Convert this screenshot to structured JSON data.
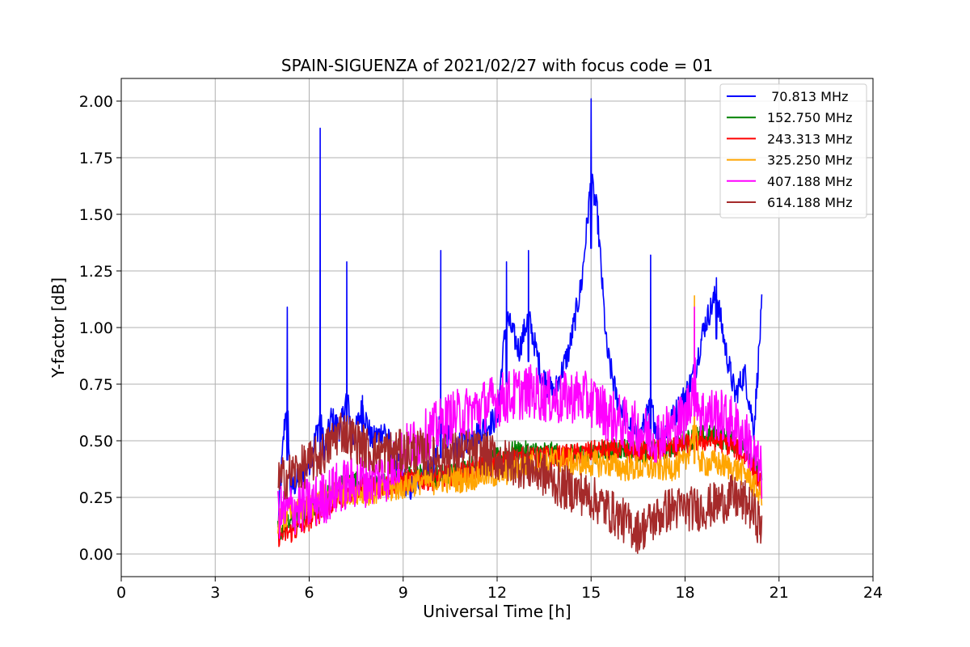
{
  "chart_data": {
    "type": "line",
    "title": "SPAIN-SIGUENZA of 2021/02/27 with focus code = 01",
    "xlabel": "Universal Time [h]",
    "ylabel": "Y-factor [dB]",
    "xlim": [
      0,
      24
    ],
    "ylim": [
      -0.1,
      2.1
    ],
    "xticks": [
      0,
      3,
      6,
      9,
      12,
      15,
      18,
      21,
      24
    ],
    "xtick_labels": [
      "0",
      "3",
      "6",
      "9",
      "12",
      "15",
      "18",
      "21",
      "24"
    ],
    "yticks": [
      0.0,
      0.25,
      0.5,
      0.75,
      1.0,
      1.25,
      1.5,
      1.75,
      2.0
    ],
    "ytick_labels": [
      "0.00",
      "0.25",
      "0.50",
      "0.75",
      "1.00",
      "1.25",
      "1.50",
      "1.75",
      "2.00"
    ],
    "grid": true,
    "legend_position": "top-right",
    "series": [
      {
        "name": " 70.813 MHz",
        "color": "#0000ff",
        "x": [
          5.0,
          5.2,
          5.3,
          5.4,
          5.5,
          5.8,
          6.0,
          6.35,
          6.5,
          6.7,
          7.0,
          7.2,
          7.4,
          7.7,
          8.0,
          8.4,
          8.8,
          9.2,
          9.6,
          10.0,
          10.2,
          10.6,
          11.0,
          11.5,
          12.0,
          12.3,
          12.7,
          13.0,
          13.4,
          13.8,
          14.3,
          14.7,
          15.0,
          15.2,
          15.5,
          15.8,
          16.1,
          16.5,
          16.9,
          17.2,
          17.6,
          18.0,
          18.3,
          18.6,
          19.0,
          19.3,
          19.6,
          19.9,
          20.2,
          20.45
        ],
        "y": [
          0.12,
          0.55,
          1.09,
          0.28,
          0.3,
          0.35,
          0.4,
          1.88,
          0.45,
          0.6,
          0.55,
          1.29,
          0.5,
          0.7,
          0.5,
          0.55,
          0.4,
          0.28,
          0.35,
          0.4,
          1.34,
          0.45,
          0.5,
          0.55,
          0.6,
          1.29,
          0.9,
          1.34,
          0.8,
          0.7,
          0.9,
          1.2,
          2.01,
          1.5,
          0.9,
          0.7,
          0.6,
          0.5,
          1.32,
          0.5,
          0.6,
          0.7,
          0.8,
          1.0,
          1.22,
          0.9,
          0.7,
          0.8,
          0.55,
          1.09
        ]
      },
      {
        "name": "152.750 MHz",
        "color": "#008000",
        "x": [
          5.0,
          5.5,
          6.0,
          6.5,
          7.0,
          7.5,
          8.0,
          8.5,
          9.0,
          9.5,
          10.0,
          10.5,
          11.0,
          11.5,
          12.0,
          12.5,
          13.0,
          13.5,
          14.0,
          14.5,
          15.0,
          15.5,
          16.0,
          16.5,
          17.0,
          17.5,
          18.0,
          18.5,
          19.0,
          19.5,
          20.0,
          20.45
        ],
        "y": [
          0.1,
          0.15,
          0.2,
          0.25,
          0.3,
          0.32,
          0.3,
          0.32,
          0.33,
          0.35,
          0.34,
          0.36,
          0.38,
          0.4,
          0.42,
          0.45,
          0.45,
          0.45,
          0.44,
          0.43,
          0.45,
          0.45,
          0.47,
          0.45,
          0.46,
          0.47,
          0.5,
          0.52,
          0.52,
          0.5,
          0.45,
          0.35
        ]
      },
      {
        "name": "243.313 MHz",
        "color": "#ff0000",
        "x": [
          5.0,
          5.5,
          6.0,
          6.5,
          7.0,
          7.5,
          8.0,
          8.5,
          9.0,
          9.5,
          10.0,
          10.5,
          11.0,
          11.5,
          12.0,
          12.5,
          13.0,
          13.5,
          14.0,
          14.5,
          15.0,
          15.5,
          16.0,
          16.5,
          17.0,
          17.5,
          18.0,
          18.5,
          19.0,
          19.5,
          20.0,
          20.45
        ],
        "y": [
          0.08,
          0.1,
          0.15,
          0.2,
          0.25,
          0.28,
          0.3,
          0.3,
          0.32,
          0.33,
          0.33,
          0.35,
          0.36,
          0.38,
          0.4,
          0.42,
          0.42,
          0.43,
          0.43,
          0.44,
          0.45,
          0.46,
          0.45,
          0.45,
          0.46,
          0.47,
          0.48,
          0.5,
          0.5,
          0.48,
          0.42,
          0.3
        ]
      },
      {
        "name": "325.250 MHz",
        "color": "#ffa500",
        "x": [
          5.0,
          5.5,
          6.0,
          6.5,
          7.0,
          7.5,
          8.0,
          8.5,
          9.0,
          9.5,
          10.0,
          10.5,
          11.0,
          11.5,
          12.0,
          12.5,
          13.0,
          13.5,
          14.0,
          14.5,
          15.0,
          15.5,
          16.0,
          16.5,
          17.0,
          17.5,
          18.0,
          18.3,
          18.5,
          19.0,
          19.5,
          20.0,
          20.45
        ],
        "y": [
          0.15,
          0.18,
          0.2,
          0.25,
          0.28,
          0.28,
          0.27,
          0.28,
          0.3,
          0.32,
          0.32,
          0.33,
          0.33,
          0.35,
          0.35,
          0.37,
          0.4,
          0.4,
          0.42,
          0.4,
          0.4,
          0.4,
          0.38,
          0.38,
          0.38,
          0.38,
          0.4,
          1.14,
          0.4,
          0.4,
          0.38,
          0.35,
          0.25
        ]
      },
      {
        "name": "407.188 MHz",
        "color": "#ff00ff",
        "x": [
          5.0,
          5.5,
          6.0,
          6.5,
          7.0,
          7.5,
          8.0,
          8.5,
          9.0,
          9.5,
          10.0,
          10.5,
          11.0,
          11.5,
          12.0,
          12.5,
          13.0,
          13.5,
          14.0,
          14.5,
          15.0,
          15.5,
          16.0,
          16.5,
          17.0,
          17.5,
          18.0,
          18.3,
          18.5,
          19.0,
          19.5,
          20.0,
          20.45
        ],
        "y": [
          0.18,
          0.2,
          0.22,
          0.25,
          0.3,
          0.32,
          0.33,
          0.35,
          0.45,
          0.5,
          0.55,
          0.6,
          0.62,
          0.65,
          0.68,
          0.7,
          0.72,
          0.7,
          0.68,
          0.7,
          0.68,
          0.62,
          0.58,
          0.55,
          0.52,
          0.55,
          0.6,
          1.09,
          0.62,
          0.62,
          0.58,
          0.5,
          0.35
        ]
      },
      {
        "name": "614.188 MHz",
        "color": "#a52a2a",
        "x": [
          5.0,
          5.5,
          6.0,
          6.5,
          7.0,
          7.5,
          8.0,
          8.5,
          9.0,
          9.5,
          10.0,
          10.5,
          11.0,
          11.5,
          12.0,
          12.5,
          13.0,
          13.5,
          14.0,
          14.5,
          15.0,
          15.5,
          16.0,
          16.5,
          17.0,
          17.5,
          18.0,
          18.5,
          19.0,
          19.5,
          20.0,
          20.45
        ],
        "y": [
          0.32,
          0.36,
          0.4,
          0.45,
          0.55,
          0.5,
          0.45,
          0.45,
          0.45,
          0.45,
          0.42,
          0.44,
          0.45,
          0.45,
          0.42,
          0.4,
          0.38,
          0.35,
          0.3,
          0.28,
          0.25,
          0.2,
          0.15,
          0.1,
          0.15,
          0.2,
          0.2,
          0.2,
          0.22,
          0.25,
          0.22,
          0.12
        ]
      }
    ]
  }
}
